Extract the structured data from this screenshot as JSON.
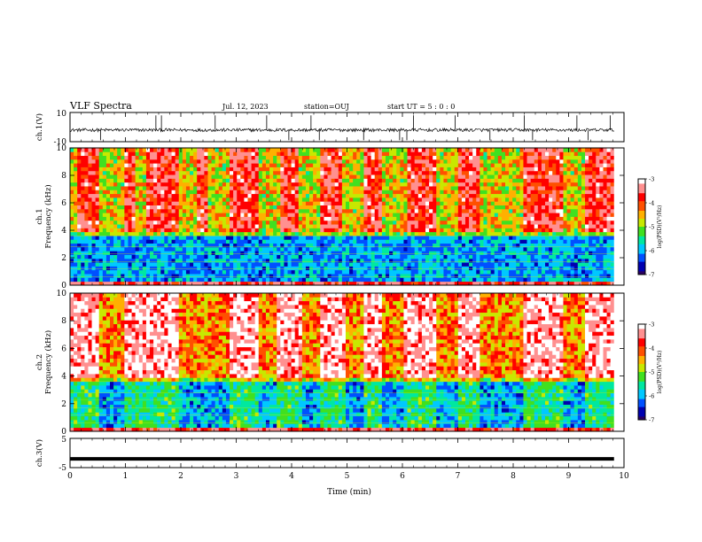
{
  "header": {
    "title": "VLF Spectra",
    "date": "Jul. 12, 2023",
    "station": "station=OUJ",
    "start": "start UT =  5 : 0 : 0"
  },
  "colors": {
    "colormap": [
      "#2a0060",
      "#0000b0",
      "#0050ff",
      "#00c8ff",
      "#00e8a0",
      "#40e020",
      "#c8e800",
      "#ffb000",
      "#ff5000",
      "#ff0000",
      "#ff9090",
      "#ffffff"
    ],
    "trace": "#000000",
    "frame": "#000000"
  },
  "chart_data": [
    {
      "id": "ch1-waveform",
      "type": "line",
      "ylabel": "ch.1(V)",
      "ylim": [
        -10,
        10
      ],
      "ytick_labels": [
        "10",
        "-10"
      ],
      "description_of_signal": "noisy waveform near -2 V with sparse spikes",
      "baseline": -2,
      "spike_times_min": [
        0.55,
        1.55,
        1.65,
        2.62,
        3.55,
        3.95,
        4.35,
        4.5,
        5.3,
        5.95,
        6.08,
        6.2,
        6.95,
        7.58,
        8.2,
        8.35,
        9.15,
        9.35,
        9.75
      ]
    },
    {
      "id": "ch1-spectrogram",
      "type": "heatmap",
      "ylabel": "ch.1\nFrequency (kHz)",
      "ylim": [
        0,
        10
      ],
      "yticks": [
        0,
        2,
        4,
        6,
        8,
        10
      ],
      "colorbar": {
        "label": "log(PSD)(V²/Hz)",
        "ticks": [
          -3,
          -4,
          -5,
          -6,
          -7
        ],
        "range": [
          -7,
          -3
        ]
      },
      "bright_intervals_min": [
        [
          0.1,
          0.5
        ],
        [
          1.0,
          1.2
        ],
        [
          1.4,
          1.95
        ],
        [
          2.3,
          2.5
        ],
        [
          2.9,
          3.4
        ],
        [
          3.8,
          4.1
        ],
        [
          4.5,
          4.9
        ],
        [
          5.3,
          5.6
        ],
        [
          6.1,
          6.6
        ],
        [
          7.0,
          7.4
        ],
        [
          8.2,
          8.9
        ],
        [
          9.3,
          9.8
        ]
      ]
    },
    {
      "id": "ch2-spectrogram",
      "type": "heatmap",
      "ylabel": "ch.2\nFrequency (kHz)",
      "ylim": [
        0,
        10
      ],
      "yticks": [
        0,
        2,
        4,
        6,
        8,
        10
      ],
      "colorbar": {
        "label": "log(PSD)(V²/Hz)",
        "ticks": [
          -3,
          -4,
          -5,
          -6,
          -7
        ],
        "range": [
          -7,
          -3
        ]
      },
      "bright_intervals_min": [
        [
          0.0,
          0.55
        ],
        [
          1.0,
          1.95
        ],
        [
          2.85,
          3.4
        ],
        [
          3.7,
          4.2
        ],
        [
          4.5,
          5.0
        ],
        [
          5.3,
          5.6
        ],
        [
          6.05,
          6.6
        ],
        [
          7.0,
          7.4
        ],
        [
          8.2,
          8.9
        ],
        [
          9.3,
          9.8
        ]
      ]
    },
    {
      "id": "ch3-waveform",
      "type": "line",
      "ylabel": "ch.3(V)",
      "ylim": [
        -5,
        5
      ],
      "ytick_labels": [
        "5",
        "-5"
      ],
      "description_of_signal": "flat thick line",
      "baseline": -2,
      "xlabel": "Time (min)",
      "xlim": [
        0,
        10
      ],
      "xticks": [
        "0",
        "1",
        "2",
        "3",
        "4",
        "5",
        "6",
        "7",
        "8",
        "9",
        "10"
      ],
      "data_end_min": 9.82
    }
  ]
}
